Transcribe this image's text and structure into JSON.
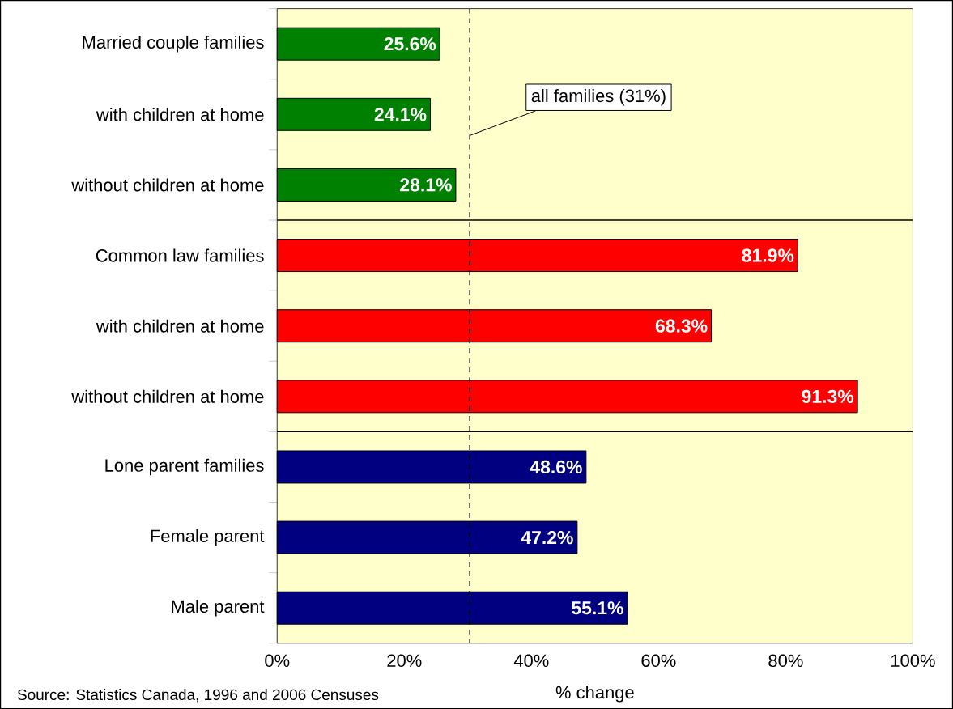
{
  "chart_data": {
    "type": "bar",
    "orientation": "horizontal",
    "categories": [
      "Married couple families",
      "with children at home",
      "without children at home",
      "Common law families",
      "with children at home",
      "without children at home",
      "Lone parent families",
      "Female parent",
      "Male parent"
    ],
    "values": [
      25.6,
      24.1,
      28.1,
      81.9,
      68.3,
      91.3,
      48.6,
      47.2,
      55.1
    ],
    "colors": [
      "#008000",
      "#008000",
      "#008000",
      "#ff0000",
      "#ff0000",
      "#ff0000",
      "#000080",
      "#000080",
      "#000080"
    ],
    "value_labels": [
      "25.6%",
      "24.1%",
      "28.1%",
      "81.9%",
      "68.3%",
      "91.3%",
      "48.6%",
      "47.2%",
      "55.1%"
    ],
    "xlabel": "% change",
    "xlim": [
      0,
      100
    ],
    "xticks": [
      {
        "value": 0,
        "label": "0%"
      },
      {
        "value": 20,
        "label": "20%"
      },
      {
        "value": 40,
        "label": "40%"
      },
      {
        "value": 60,
        "label": "60%"
      },
      {
        "value": 80,
        "label": "80%"
      },
      {
        "value": 100,
        "label": "100%"
      }
    ],
    "grid": false,
    "legend": false,
    "ref_lines": [
      {
        "axis": "x",
        "value": 30.3,
        "label": "all families (31%)",
        "line_style": "dashed",
        "color": "#000000"
      }
    ],
    "annotations": [
      "Source: Statistics Canada, 1996 and 2006 Censuses"
    ]
  }
}
